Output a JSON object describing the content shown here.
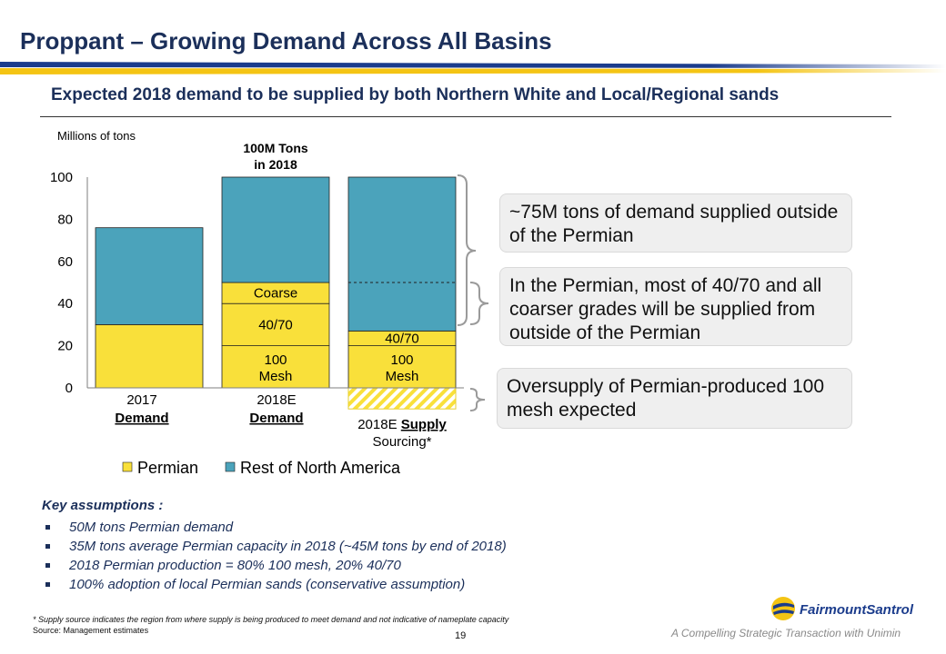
{
  "slide": {
    "title": "Proppant – Growing Demand Across All Basins",
    "subtitle": "Expected 2018 demand to be supplied by both Northern White and Local/Regional sands",
    "page_number": "19",
    "tagline": "A Compelling Strategic Transaction with Unimin",
    "logo_text": "FairmountSantrol",
    "footnote": "* Supply source indicates the region from where supply is being produced to meet demand and not indicative of nameplate capacity",
    "source": "Source: Management estimates"
  },
  "colors": {
    "title": "#1b2f5a",
    "permian": "#f9e03a",
    "rest_of_na": "#4ba3bb",
    "callout_bg": "#efefef",
    "brace": "#9a9a9a",
    "bar_blue": "#1b3c8c",
    "bar_gold": "#f4c414"
  },
  "chart_data": {
    "type": "bar",
    "stacked": true,
    "unit_label": "Millions of tons",
    "ylim": [
      0,
      100
    ],
    "yticks": [
      0,
      20,
      40,
      60,
      80,
      100
    ],
    "top_annotation": "100M Tons in 2018",
    "categories": [
      {
        "line1": "2017",
        "line2": "Demand",
        "line2_underline": false
      },
      {
        "line1": "2018E",
        "line2": "Demand",
        "line2_underline": false
      },
      {
        "line1": "2018E",
        "line1_underlined_word": "Supply",
        "line2": "Sourcing*"
      }
    ],
    "legend": [
      "Permian",
      "Rest of North America"
    ],
    "bars": [
      {
        "segments": [
          {
            "series": "Permian",
            "from": 0,
            "to": 30,
            "label": ""
          },
          {
            "series": "Rest of North America",
            "from": 30,
            "to": 76,
            "label": ""
          }
        ]
      },
      {
        "segments": [
          {
            "series": "Permian",
            "from": 0,
            "to": 20,
            "label": "100 Mesh"
          },
          {
            "series": "Permian",
            "from": 20,
            "to": 40,
            "label": "40/70"
          },
          {
            "series": "Permian",
            "from": 40,
            "to": 50,
            "label": "Coarse"
          },
          {
            "series": "Rest of North America",
            "from": 50,
            "to": 100,
            "label": ""
          }
        ]
      },
      {
        "segments": [
          {
            "series": "Permian",
            "from": -10,
            "to": 0,
            "label": "",
            "hatched": true
          },
          {
            "series": "Permian",
            "from": 0,
            "to": 20,
            "label": "100 Mesh"
          },
          {
            "series": "Permian",
            "from": 20,
            "to": 27,
            "label": "40/70"
          },
          {
            "series": "Rest of North America",
            "from": 27,
            "to": 100,
            "label": ""
          }
        ],
        "dashed_line_at": 50
      }
    ]
  },
  "callouts": [
    {
      "text": "~75M tons of demand supplied outside of the Permian"
    },
    {
      "text": "In the Permian, most of 40/70 and all coarser grades will be supplied from outside of the Permian"
    },
    {
      "text": "Oversupply of Permian-produced 100 mesh expected"
    }
  ],
  "assumptions": {
    "heading": "Key assumptions :",
    "items": [
      "50M tons Permian demand",
      "35M tons average Permian capacity in 2018 (~45M tons by end of 2018)",
      "2018 Permian production = 80% 100 mesh, 20% 40/70",
      "100% adoption of local Permian sands (conservative assumption)"
    ]
  }
}
